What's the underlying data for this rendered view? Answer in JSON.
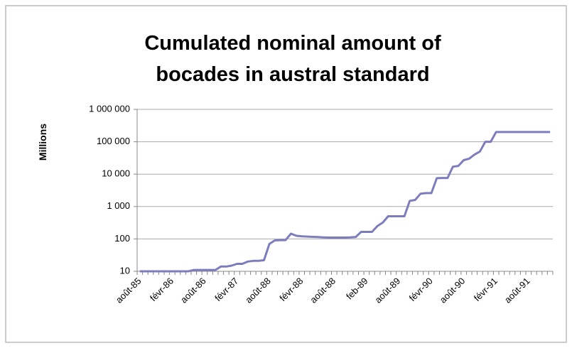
{
  "chart_data": {
    "type": "line",
    "title": [
      "Cumulated nominal amount of",
      "bocades in austral standard"
    ],
    "y_label": "Millions",
    "log_y": true,
    "grid": true,
    "ylim": [
      10,
      1000000
    ],
    "yticks": [
      10,
      100,
      {
        "value": 1000,
        "label": "1 000"
      },
      {
        "value": 10000,
        "label": "10 000"
      },
      {
        "value": 100000,
        "label": "100 000"
      },
      {
        "value": 1000000,
        "label": "1 000 000"
      }
    ],
    "categories": [
      "août-85",
      null,
      null,
      null,
      null,
      null,
      "févr-86",
      null,
      null,
      null,
      null,
      null,
      "août-86",
      null,
      null,
      null,
      null,
      null,
      "févr-87",
      null,
      null,
      null,
      null,
      null,
      "août-88",
      null,
      null,
      null,
      null,
      null,
      "févr-88",
      null,
      null,
      null,
      null,
      null,
      "août-88",
      null,
      null,
      null,
      null,
      null,
      "feb-89",
      null,
      null,
      null,
      null,
      null,
      "août-89",
      null,
      null,
      null,
      null,
      null,
      "févr-90",
      null,
      null,
      null,
      null,
      null,
      "août-90",
      null,
      null,
      null,
      null,
      null,
      "févr-91",
      null,
      null,
      null,
      null,
      null,
      "août-91",
      null,
      null,
      null,
      null
    ],
    "series": [
      {
        "name": "Cumulated nominal amount",
        "color": "#7d7dbd",
        "values": [
          10,
          10,
          10,
          10,
          10,
          10,
          10,
          10,
          10,
          10,
          11,
          11,
          11,
          11,
          11,
          14,
          14,
          15,
          17,
          17,
          20,
          21,
          21,
          22,
          70,
          90,
          92,
          92,
          145,
          125,
          120,
          118,
          116,
          114,
          112,
          110,
          110,
          110,
          110,
          112,
          115,
          165,
          165,
          165,
          250,
          320,
          500,
          500,
          500,
          500,
          1500,
          1600,
          2500,
          2600,
          2600,
          7500,
          7600,
          7600,
          17000,
          18000,
          27000,
          30000,
          40000,
          50000,
          100000,
          100000,
          200000,
          200000,
          200000,
          200000,
          200000,
          200000,
          200000,
          200000,
          200000,
          200000,
          200000
        ]
      }
    ]
  }
}
